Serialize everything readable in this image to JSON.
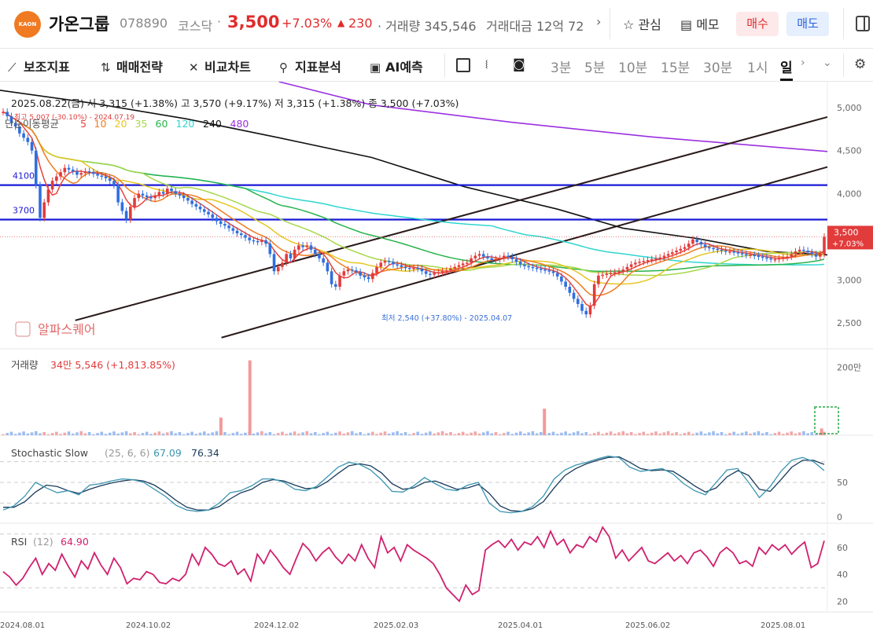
{
  "header": {
    "logo_text": "KAON",
    "name": "가온그룹",
    "code": "078890",
    "market": "코스닥",
    "price": "3,500",
    "change_pct": "+7.03%",
    "change_arrow": "▲",
    "change_abs": "230",
    "volume_text": "· 거래량 345,546",
    "amount_text": "거래대금 12억 72",
    "watch_label": "관심",
    "memo_label": "메모",
    "buy_label": "매수",
    "sell_label": "매도"
  },
  "toolbar": {
    "indicators_label": "보조지표",
    "strategy_label": "매매전략",
    "compare_label": "비교차트",
    "analysis_label": "지표분석",
    "ai_label": "AI예측",
    "timeframes": [
      "3분",
      "5분",
      "10분",
      "15분",
      "30분",
      "1시",
      "일"
    ],
    "selected_timeframe": "일"
  },
  "colors": {
    "up": "#e23b3b",
    "down": "#2f6fe0",
    "ma5": "#e8433d",
    "ma10": "#f07c20",
    "ma20": "#e6c623",
    "ma35": "#a7d84a",
    "ma60": "#27b34b",
    "ma120": "#2fd6d0",
    "ma240": "#111111",
    "ma480": "#9b30e0",
    "hline": "#1a1ad6",
    "trend": "#2a1a1a",
    "stoch_k": "#3a95b0",
    "stoch_d": "#1a3a5a",
    "rsi": "#d0206e"
  },
  "chart_data": [
    {
      "type": "candlestick",
      "panel": "price",
      "ohlc_label": "2025.08.22(금)  시 3,315 (+1.38%)  고 3,570 (+9.17%)  저 3,315 (+1.38%)  종 3,500 (+7.03%)",
      "ma_label": "단순이동평균",
      "ma_periods": [
        "5",
        "10",
        "20",
        "35",
        "60",
        "120",
        "240",
        "480"
      ],
      "max_marker": "최고 5,007 (-30.10%) - 2024.07.19",
      "min_marker": "최저 2,540 (+37.80%) - 2025.04.07",
      "last_price": "3,500",
      "last_pct": "+7.03%",
      "y_ticks": [
        "5,000",
        "4,500",
        "4,000",
        "3,500",
        "3,000",
        "2,500"
      ],
      "ylim": [
        2200,
        5300
      ],
      "hlines": [
        {
          "label": "4100",
          "value": 4100
        },
        {
          "label": "3700",
          "value": 3700
        }
      ],
      "trend_lines": [
        {
          "from": [
            "2024.08.27",
            2530
          ],
          "to": [
            "2025.08.22",
            4890
          ]
        },
        {
          "from": [
            "2024.11.05",
            2330
          ],
          "to": [
            "2025.08.22",
            4310
          ]
        }
      ],
      "ma_series": {
        "ma240": [
          [
            0,
            5200
          ],
          [
            40,
            5050
          ],
          [
            80,
            4870
          ],
          [
            120,
            4650
          ],
          [
            160,
            4420
          ],
          [
            200,
            4080
          ],
          [
            240,
            3820
          ],
          [
            268,
            3600
          ],
          [
            300,
            3480
          ],
          [
            330,
            3330
          ],
          [
            356,
            3290
          ]
        ],
        "ma480": [
          [
            120,
            5300
          ],
          [
            160,
            5030
          ],
          [
            220,
            4830
          ],
          [
            280,
            4660
          ],
          [
            356,
            4490
          ]
        ]
      },
      "watermark": "알파스퀘어",
      "x_ticks": [
        "2024.08.01",
        "2024.10.02",
        "2024.12.02",
        "2025.02.03",
        "2025.04.01",
        "2025.06.02",
        "2025.08.01"
      ],
      "closes": [
        4950,
        4900,
        4820,
        4780,
        4700,
        4650,
        4600,
        4500,
        4100,
        3720,
        3900,
        4050,
        4150,
        4200,
        4250,
        4300,
        4280,
        4260,
        4220,
        4240,
        4260,
        4250,
        4230,
        4210,
        4200,
        4180,
        4150,
        4100,
        3900,
        3800,
        3700,
        3850,
        3950,
        4000,
        3980,
        3960,
        3950,
        3980,
        4020,
        4000,
        4060,
        4030,
        4000,
        3980,
        3950,
        3920,
        3880,
        3850,
        3820,
        3790,
        3760,
        3720,
        3680,
        3650,
        3630,
        3600,
        3570,
        3540,
        3520,
        3490,
        3460,
        3450,
        3440,
        3460,
        3420,
        3300,
        3100,
        3150,
        3200,
        3300,
        3250,
        3350,
        3400,
        3380,
        3400,
        3350,
        3300,
        3250,
        3200,
        3100,
        2950,
        2920,
        3050,
        3100,
        3120,
        3110,
        3090,
        3050,
        3030,
        3010,
        3080,
        3150,
        3200,
        3220,
        3210,
        3180,
        3170,
        3150,
        3140,
        3130,
        3140,
        3130,
        3100,
        3070,
        3060,
        3080,
        3090,
        3100,
        3110,
        3130,
        3150,
        3170,
        3190,
        3200,
        3250,
        3280,
        3300,
        3270,
        3250,
        3230,
        3240,
        3250,
        3280,
        3270,
        3240,
        3210,
        3180,
        3160,
        3150,
        3140,
        3130,
        3120,
        3110,
        3100,
        3080,
        3040,
        2980,
        2920,
        2850,
        2780,
        2720,
        2640,
        2600,
        2700,
        2950,
        3050,
        3060,
        3070,
        3080,
        3090,
        3100,
        3120,
        3150,
        3180,
        3200,
        3210,
        3220,
        3230,
        3240,
        3250,
        3260,
        3280,
        3300,
        3320,
        3340,
        3360,
        3380,
        3420,
        3470,
        3440,
        3410,
        3380,
        3370,
        3360,
        3350,
        3340,
        3330,
        3330,
        3320,
        3310,
        3300,
        3290,
        3290,
        3280,
        3270,
        3260,
        3250,
        3240,
        3240,
        3250,
        3260,
        3270,
        3300,
        3330,
        3350,
        3340,
        3320,
        3300,
        3270,
        3300,
        3500
      ]
    },
    {
      "type": "bar",
      "panel": "volume",
      "label": "거래량",
      "value_text": "34만 5,546 (+1,813.85%)",
      "y_ticks": [
        "200만"
      ],
      "spikes": [
        {
          "x": 0.302,
          "value": 2200000
        },
        {
          "x": 0.658,
          "value": 780000
        },
        {
          "x": 0.267,
          "value": 520000
        },
        {
          "x": 0.993,
          "value": 200000
        }
      ]
    },
    {
      "type": "line",
      "panel": "stochastic",
      "label": "Stochastic Slow",
      "params": "(25, 6, 6)",
      "k_text": "67.09",
      "d_text": "76.34",
      "y_ticks": [
        "50",
        "0"
      ],
      "k": [
        10,
        16,
        30,
        50,
        42,
        35,
        38,
        32,
        46,
        48,
        52,
        55,
        54,
        50,
        40,
        30,
        17,
        10,
        8,
        10,
        20,
        35,
        38,
        45,
        55,
        55,
        50,
        40,
        38,
        44,
        58,
        72,
        79,
        76,
        68,
        54,
        37,
        36,
        45,
        57,
        48,
        40,
        38,
        46,
        50,
        20,
        8,
        6,
        8,
        15,
        30,
        55,
        68,
        75,
        79,
        84,
        88,
        86,
        72,
        66,
        68,
        70,
        62,
        48,
        38,
        32,
        50,
        68,
        70,
        50,
        28,
        44,
        66,
        82,
        86,
        80,
        67
      ],
      "d": [
        14,
        14,
        22,
        36,
        46,
        44,
        38,
        34,
        40,
        45,
        49,
        52,
        54,
        52,
        46,
        36,
        24,
        14,
        10,
        10,
        15,
        26,
        35,
        40,
        50,
        54,
        52,
        46,
        41,
        42,
        51,
        63,
        74,
        77,
        74,
        64,
        48,
        40,
        42,
        50,
        52,
        46,
        40,
        42,
        47,
        34,
        16,
        9,
        8,
        12,
        22,
        42,
        60,
        70,
        77,
        82,
        86,
        87,
        79,
        70,
        67,
        68,
        66,
        56,
        45,
        36,
        42,
        58,
        67,
        60,
        40,
        37,
        54,
        72,
        82,
        82,
        76
      ]
    },
    {
      "type": "line",
      "panel": "rsi",
      "label": "RSI",
      "params": "(12)",
      "value_text": "64.90",
      "y_ticks": [
        "60",
        "40",
        "20"
      ],
      "values": [
        42,
        38,
        32,
        37,
        45,
        52,
        40,
        48,
        43,
        55,
        46,
        38,
        50,
        44,
        56,
        47,
        40,
        52,
        45,
        33,
        37,
        36,
        42,
        40,
        34,
        33,
        37,
        35,
        40,
        55,
        47,
        60,
        55,
        48,
        46,
        50,
        40,
        44,
        35,
        55,
        48,
        58,
        52,
        45,
        40,
        52,
        63,
        58,
        50,
        56,
        60,
        53,
        48,
        55,
        50,
        62,
        52,
        45,
        68,
        56,
        60,
        50,
        62,
        58,
        55,
        52,
        48,
        40,
        30,
        25,
        20,
        32,
        25,
        28,
        58,
        62,
        65,
        60,
        66,
        58,
        64,
        62,
        68,
        60,
        72,
        62,
        66,
        56,
        62,
        60,
        68,
        64,
        75,
        68,
        52,
        58,
        50,
        55,
        60,
        50,
        48,
        52,
        56,
        50,
        54,
        48,
        56,
        58,
        53,
        46,
        56,
        60,
        56,
        48,
        50,
        46,
        60,
        55,
        62,
        58,
        62,
        55,
        60,
        64,
        45,
        48,
        65
      ]
    }
  ]
}
